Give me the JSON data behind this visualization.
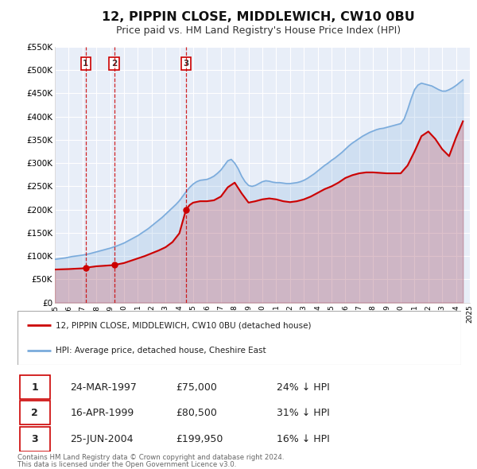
{
  "title": "12, PIPPIN CLOSE, MIDDLEWICH, CW10 0BU",
  "subtitle": "Price paid vs. HM Land Registry's House Price Index (HPI)",
  "title_fontsize": 11.5,
  "subtitle_fontsize": 9,
  "background_color": "#ffffff",
  "plot_bg_color": "#e8eef8",
  "grid_color": "#ffffff",
  "hpi_color": "#7aabdc",
  "price_color": "#cc0000",
  "ylim": [
    0,
    550000
  ],
  "yticks": [
    0,
    50000,
    100000,
    150000,
    200000,
    250000,
    300000,
    350000,
    400000,
    450000,
    500000,
    550000
  ],
  "ytick_labels": [
    "£0",
    "£50K",
    "£100K",
    "£150K",
    "£200K",
    "£250K",
    "£300K",
    "£350K",
    "£400K",
    "£450K",
    "£500K",
    "£550K"
  ],
  "xtick_years": [
    1995,
    1996,
    1997,
    1998,
    1999,
    2000,
    2001,
    2002,
    2003,
    2004,
    2005,
    2006,
    2007,
    2008,
    2009,
    2010,
    2011,
    2012,
    2013,
    2014,
    2015,
    2016,
    2017,
    2018,
    2019,
    2020,
    2021,
    2022,
    2023,
    2024,
    2025
  ],
  "sale_dates": [
    1997.23,
    1999.29,
    2004.48
  ],
  "sale_prices": [
    75000,
    80500,
    199950
  ],
  "sale_labels": [
    "1",
    "2",
    "3"
  ],
  "legend_line1": "12, PIPPIN CLOSE, MIDDLEWICH, CW10 0BU (detached house)",
  "legend_line2": "HPI: Average price, detached house, Cheshire East",
  "table_rows": [
    [
      "1",
      "24-MAR-1997",
      "£75,000",
      "24% ↓ HPI"
    ],
    [
      "2",
      "16-APR-1999",
      "£80,500",
      "31% ↓ HPI"
    ],
    [
      "3",
      "25-JUN-2004",
      "£199,950",
      "16% ↓ HPI"
    ]
  ],
  "footer_line1": "Contains HM Land Registry data © Crown copyright and database right 2024.",
  "footer_line2": "This data is licensed under the Open Government Licence v3.0.",
  "hpi_x": [
    1995.0,
    1995.25,
    1995.5,
    1995.75,
    1996.0,
    1996.25,
    1996.5,
    1996.75,
    1997.0,
    1997.25,
    1997.5,
    1997.75,
    1998.0,
    1998.25,
    1998.5,
    1998.75,
    1999.0,
    1999.25,
    1999.5,
    1999.75,
    2000.0,
    2000.25,
    2000.5,
    2000.75,
    2001.0,
    2001.25,
    2001.5,
    2001.75,
    2002.0,
    2002.25,
    2002.5,
    2002.75,
    2003.0,
    2003.25,
    2003.5,
    2003.75,
    2004.0,
    2004.25,
    2004.5,
    2004.75,
    2005.0,
    2005.25,
    2005.5,
    2005.75,
    2006.0,
    2006.25,
    2006.5,
    2006.75,
    2007.0,
    2007.25,
    2007.5,
    2007.75,
    2008.0,
    2008.25,
    2008.5,
    2008.75,
    2009.0,
    2009.25,
    2009.5,
    2009.75,
    2010.0,
    2010.25,
    2010.5,
    2010.75,
    2011.0,
    2011.25,
    2011.5,
    2011.75,
    2012.0,
    2012.25,
    2012.5,
    2012.75,
    2013.0,
    2013.25,
    2013.5,
    2013.75,
    2014.0,
    2014.25,
    2014.5,
    2014.75,
    2015.0,
    2015.25,
    2015.5,
    2015.75,
    2016.0,
    2016.25,
    2016.5,
    2016.75,
    2017.0,
    2017.25,
    2017.5,
    2017.75,
    2018.0,
    2018.25,
    2018.5,
    2018.75,
    2019.0,
    2019.25,
    2019.5,
    2019.75,
    2020.0,
    2020.25,
    2020.5,
    2020.75,
    2021.0,
    2021.25,
    2021.5,
    2021.75,
    2022.0,
    2022.25,
    2022.5,
    2022.75,
    2023.0,
    2023.25,
    2023.5,
    2023.75,
    2024.0,
    2024.25,
    2024.5
  ],
  "hpi_y": [
    93000,
    94000,
    95000,
    96000,
    97500,
    99000,
    100000,
    101000,
    102000,
    103500,
    105000,
    107000,
    109000,
    111000,
    113000,
    115000,
    117000,
    119500,
    122000,
    125000,
    128000,
    132000,
    136000,
    140000,
    144000,
    149000,
    154000,
    159000,
    165000,
    171000,
    177000,
    183000,
    190000,
    197000,
    204000,
    211000,
    219000,
    229000,
    239000,
    248000,
    255000,
    260000,
    263000,
    264000,
    265000,
    268000,
    272000,
    278000,
    285000,
    295000,
    305000,
    308000,
    300000,
    288000,
    272000,
    260000,
    252000,
    250000,
    252000,
    256000,
    260000,
    262000,
    261000,
    259000,
    258000,
    258000,
    257000,
    256000,
    256000,
    257000,
    258000,
    260000,
    263000,
    267000,
    272000,
    277000,
    283000,
    289000,
    295000,
    300000,
    306000,
    311000,
    317000,
    323000,
    330000,
    337000,
    343000,
    348000,
    353000,
    358000,
    362000,
    366000,
    369000,
    372000,
    374000,
    375000,
    377000,
    379000,
    381000,
    383000,
    385000,
    395000,
    415000,
    438000,
    458000,
    468000,
    472000,
    470000,
    468000,
    466000,
    462000,
    458000,
    455000,
    455000,
    458000,
    462000,
    467000,
    473000,
    479000
  ],
  "price_x": [
    1995.0,
    1995.5,
    1996.0,
    1996.5,
    1997.0,
    1997.23,
    1997.5,
    1998.0,
    1998.5,
    1999.0,
    1999.29,
    1999.5,
    2000.0,
    2000.5,
    2001.0,
    2001.5,
    2002.0,
    2002.5,
    2003.0,
    2003.5,
    2004.0,
    2004.48,
    2004.75,
    2005.0,
    2005.5,
    2006.0,
    2006.5,
    2007.0,
    2007.5,
    2008.0,
    2008.5,
    2009.0,
    2009.5,
    2010.0,
    2010.5,
    2011.0,
    2011.5,
    2012.0,
    2012.5,
    2013.0,
    2013.5,
    2014.0,
    2014.5,
    2015.0,
    2015.5,
    2016.0,
    2016.5,
    2017.0,
    2017.5,
    2018.0,
    2018.5,
    2019.0,
    2019.5,
    2020.0,
    2020.5,
    2021.0,
    2021.5,
    2022.0,
    2022.5,
    2023.0,
    2023.5,
    2024.0,
    2024.5
  ],
  "price_y": [
    71000,
    71500,
    72000,
    72800,
    73500,
    75000,
    76000,
    78000,
    79000,
    80000,
    80500,
    82000,
    85000,
    90000,
    95000,
    100000,
    106000,
    112000,
    119000,
    130000,
    149000,
    199950,
    210000,
    215000,
    218000,
    218000,
    220000,
    228000,
    248000,
    258000,
    235000,
    215000,
    218000,
    222000,
    224000,
    222000,
    218000,
    216000,
    218000,
    222000,
    228000,
    236000,
    244000,
    250000,
    258000,
    268000,
    274000,
    278000,
    280000,
    280000,
    279000,
    278000,
    278000,
    278000,
    295000,
    325000,
    358000,
    368000,
    352000,
    330000,
    315000,
    355000,
    390000
  ]
}
